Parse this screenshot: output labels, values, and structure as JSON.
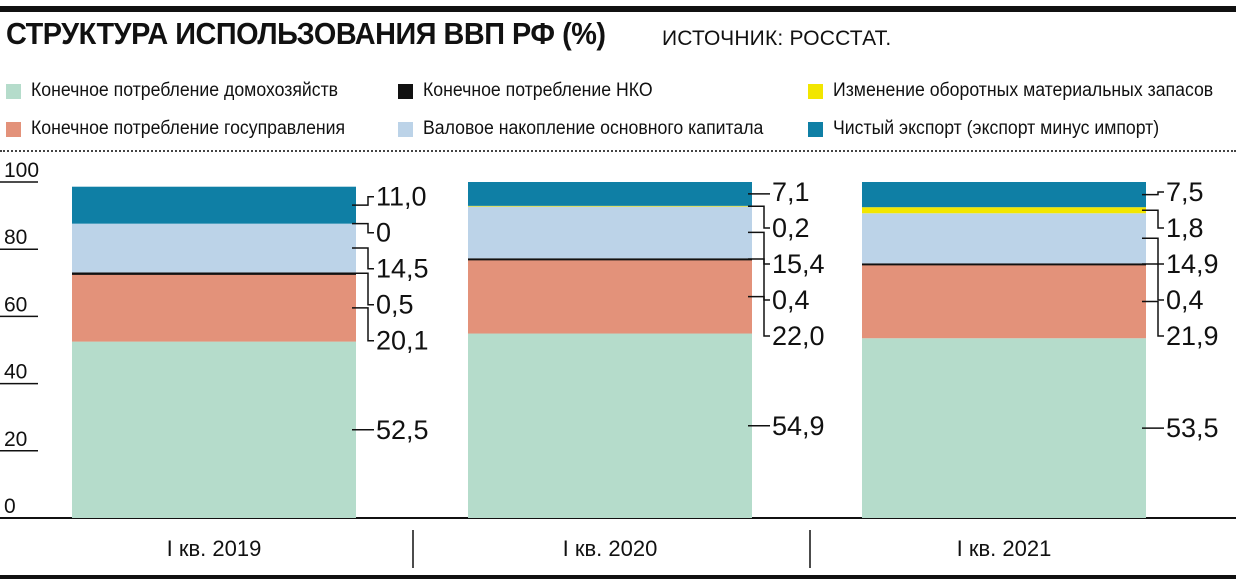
{
  "header": {
    "title": "СТРУКТУРА ИСПОЛЬЗОВАНИЯ ВВП РФ (%)",
    "source": "ИСТОЧНИК: РОССТАТ."
  },
  "colors": {
    "households": "#b5dccb",
    "government": "#e3927a",
    "nko": "#111111",
    "fixed_capital": "#bcd3e8",
    "inventories": "#f2e600",
    "net_exports": "#0f7fa5",
    "axis": "#111111"
  },
  "legend": [
    {
      "key": "households",
      "label": "Конечное потребление домохозяйств"
    },
    {
      "key": "nko",
      "label": "Конечное потребление НКО"
    },
    {
      "key": "inventories",
      "label": "Изменение оборотных материальных запасов"
    },
    {
      "key": "government",
      "label": "Конечное потребление госуправления"
    },
    {
      "key": "fixed_capital",
      "label": "Валовое накопление основного капитала"
    },
    {
      "key": "net_exports",
      "label": "Чистый экспорт (экспорт минус импорт)"
    }
  ],
  "chart_data": {
    "type": "bar",
    "stacked": true,
    "categories": [
      "I кв. 2019",
      "I кв. 2020",
      "I кв. 2021"
    ],
    "series": [
      {
        "key": "households",
        "name": "Конечное потребление домохозяйств",
        "values": [
          52.5,
          54.9,
          53.5
        ],
        "labels": [
          "52,5",
          "54,9",
          "53,5"
        ]
      },
      {
        "key": "government",
        "name": "Конечное потребление госуправления",
        "values": [
          20.1,
          22.0,
          21.9
        ],
        "labels": [
          "20,1",
          "22,0",
          "21,9"
        ]
      },
      {
        "key": "nko",
        "name": "Конечное потребление НКО",
        "values": [
          0.5,
          0.4,
          0.4
        ],
        "labels": [
          "0,5",
          "0,4",
          "0,4"
        ]
      },
      {
        "key": "fixed_capital",
        "name": "Валовое накопление основного капитала",
        "values": [
          14.5,
          15.4,
          14.9
        ],
        "labels": [
          "14,5",
          "15,4",
          "14,9"
        ]
      },
      {
        "key": "inventories",
        "name": "Изменение оборотных материальных запасов",
        "values": [
          0,
          0.2,
          1.8
        ],
        "labels": [
          "0",
          "0,2",
          "1,8"
        ]
      },
      {
        "key": "net_exports",
        "name": "Чистый экспорт (экспорт минус импорт)",
        "values": [
          11.0,
          7.1,
          7.5
        ],
        "labels": [
          "11,0",
          "7,1",
          "7,5"
        ]
      }
    ],
    "y_ticks": [
      "100",
      "80",
      "60",
      "40",
      "20",
      "0"
    ],
    "ylim": [
      0,
      100
    ],
    "grid": false,
    "legend_position": "top"
  }
}
